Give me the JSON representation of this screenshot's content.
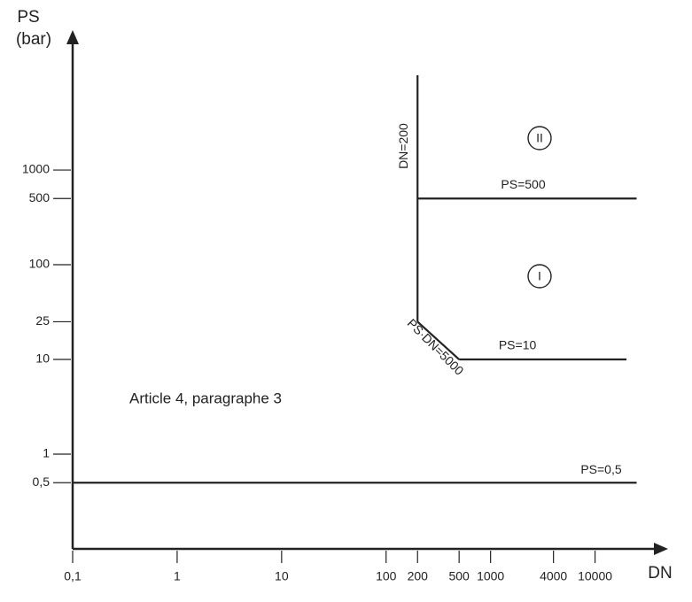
{
  "chart_data": {
    "type": "line",
    "xlabel": "DN",
    "ylabel": "PS",
    "ylabel_unit": "(bar)",
    "xscale": "log",
    "yscale": "log",
    "xlim": [
      0.1,
      50000
    ],
    "ylim": [
      0.1,
      30000
    ],
    "xticks": [
      {
        "value": 0.1,
        "label": "0,1"
      },
      1,
      10,
      100,
      200,
      500,
      1000,
      4000,
      10000
    ],
    "yticks": [
      {
        "value": 0.5,
        "label": "0,5"
      },
      1,
      10,
      25,
      100,
      500,
      1000
    ],
    "color": "#222222",
    "series": [
      {
        "name": "DN=200",
        "x": [
          200,
          200
        ],
        "y": [
          25,
          10000
        ]
      },
      {
        "name": "PS·DN=5000",
        "x": [
          200,
          500
        ],
        "y": [
          25,
          10
        ]
      },
      {
        "name": "PS=500",
        "x": [
          200,
          25000
        ],
        "y": [
          500,
          500
        ]
      },
      {
        "name": "PS=10",
        "x": [
          500,
          20000
        ],
        "y": [
          10,
          10
        ]
      },
      {
        "name": "PS=0,5",
        "x": [
          0.1,
          25000
        ],
        "y": [
          0.5,
          0.5
        ]
      }
    ],
    "regions": [
      "II",
      "I"
    ],
    "annotation": "Article 4, paragraphe 3"
  }
}
